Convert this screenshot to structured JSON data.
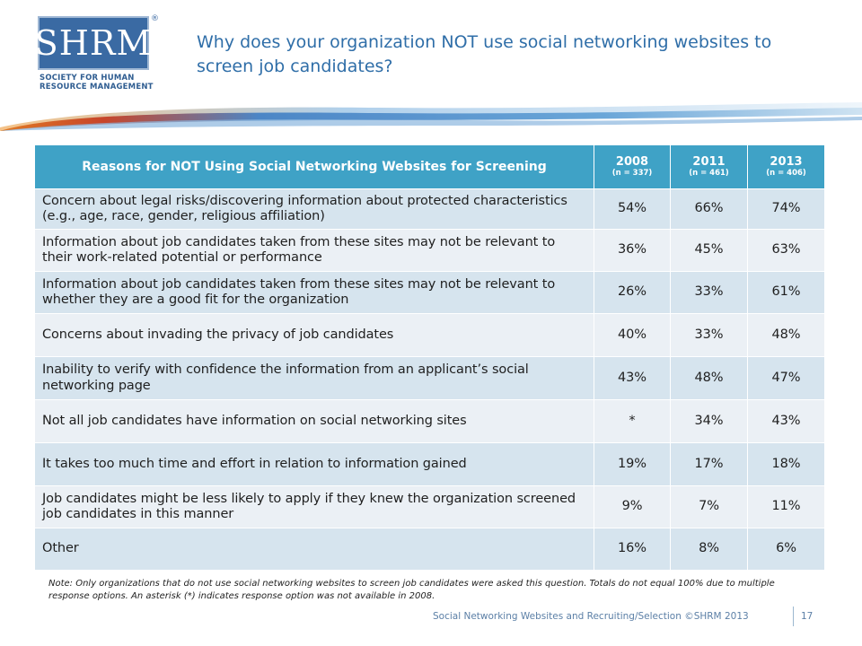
{
  "logo": {
    "mark": "SHRM",
    "registered": "®",
    "subtitle_line1": "SOCIETY FOR HUMAN",
    "subtitle_line2": "RESOURCE MANAGEMENT"
  },
  "title": "Why does your organization NOT use social networking websites to screen job candidates?",
  "table": {
    "header_reason": "Reasons for NOT Using Social Networking Websites for Screening",
    "years": [
      {
        "year": "2008",
        "n": "(n = 337)"
      },
      {
        "year": "2011",
        "n": "(n = 461)"
      },
      {
        "year": "2013",
        "n": "(n = 406)"
      }
    ],
    "rows": [
      {
        "reason": "Concern about legal risks/discovering information about protected characteristics (e.g., age, race, gender, religious affiliation)",
        "v2008": "54%",
        "v2011": "66%",
        "v2013": "74%"
      },
      {
        "reason": "Information about job candidates taken from these sites may not be relevant to their work-related potential or performance",
        "v2008": "36%",
        "v2011": "45%",
        "v2013": "63%"
      },
      {
        "reason": "Information about job candidates taken from these sites may not be relevant to whether they are a good fit for the organization",
        "v2008": "26%",
        "v2011": "33%",
        "v2013": "61%"
      },
      {
        "reason": "Concerns about invading the privacy of job candidates",
        "v2008": "40%",
        "v2011": "33%",
        "v2013": "48%"
      },
      {
        "reason": "Inability to verify with confidence the information from an applicant’s social networking page",
        "v2008": "43%",
        "v2011": "48%",
        "v2013": "47%"
      },
      {
        "reason": "Not all job candidates have information on social networking sites",
        "v2008": "*",
        "v2011": "34%",
        "v2013": "43%"
      },
      {
        "reason": "It takes too much time and effort in relation to information gained",
        "v2008": "19%",
        "v2011": "17%",
        "v2013": "18%"
      },
      {
        "reason": "Job candidates might be less likely to apply if they knew the organization screened job candidates in this manner",
        "v2008": "9%",
        "v2011": "7%",
        "v2013": "11%"
      },
      {
        "reason": "Other",
        "v2008": "16%",
        "v2011": "8%",
        "v2013": "6%"
      }
    ]
  },
  "note": "Note: Only organizations that do not use social networking websites to screen job candidates were asked this question. Totals do not equal 100% due to multiple response options. An asterisk (*) indicates response option was not available in 2008.",
  "footer": {
    "text": "Social Networking Websites and Recruiting/Selection ©SHRM 2013",
    "page": "17"
  },
  "colors": {
    "header_bg": "#3fa2c6",
    "row_odd": "#d6e4ee",
    "row_even": "#ebf0f5",
    "title": "#2f6ea8",
    "logo_blue": "#3a6aa3"
  }
}
